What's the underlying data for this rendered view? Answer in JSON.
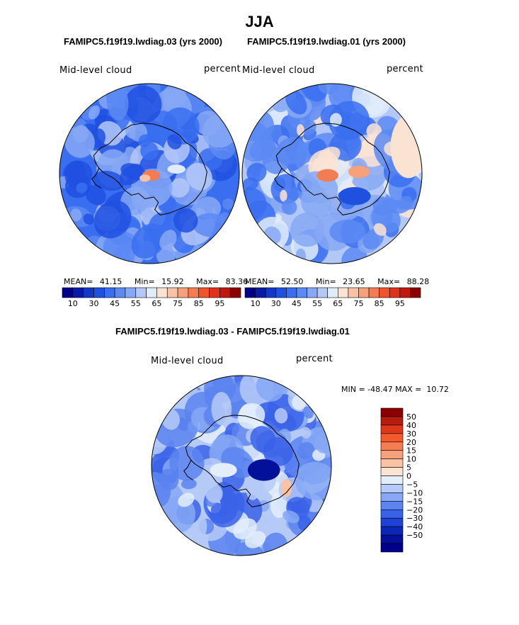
{
  "title": "JJA",
  "panels": [
    {
      "case_title": "FAMIPC5.f19f19.lwdiag.03 (yrs 2000)",
      "variable": "Mid-level cloud",
      "units": "percent",
      "stats": {
        "mean_label": "MEAN=",
        "mean": "41.15",
        "min_label": "Min=",
        "min": "15.92",
        "max_label": "Max=",
        "max": "83.36"
      }
    },
    {
      "case_title": "FAMIPC5.f19f19.lwdiag.01 (yrs 2000)",
      "variable": "Mid-level cloud",
      "units": "percent",
      "stats": {
        "mean_label": "MEAN=",
        "mean": "52.50",
        "min_label": "Min=",
        "min": "23.65",
        "max_label": "Max=",
        "max": "88.28"
      }
    }
  ],
  "diff_panel": {
    "title": "FAMIPC5.f19f19.lwdiag.03 - FAMIPC5.f19f19.lwdiag.01",
    "variable": "Mid-level cloud",
    "units": "percent",
    "minmax": "MIN = -48.47 MAX =  10.72"
  },
  "chart_data": [
    {
      "type": "heatmap",
      "projection": "south-polar-stereographic",
      "title": "FAMIPC5.f19f19.lwdiag.03 (yrs 2000)",
      "field": "Mid-level cloud",
      "units": "percent",
      "mean": 41.15,
      "min": 15.92,
      "max": 83.36,
      "contour_levels": [
        10,
        15,
        20,
        25,
        30,
        35,
        40,
        45,
        50,
        55,
        60,
        65,
        70,
        75,
        80,
        85,
        90,
        95
      ],
      "colorbar_labels": [
        "10",
        "30",
        "45",
        "55",
        "65",
        "75",
        "85",
        "95"
      ]
    },
    {
      "type": "heatmap",
      "projection": "south-polar-stereographic",
      "title": "FAMIPC5.f19f19.lwdiag.01 (yrs 2000)",
      "field": "Mid-level cloud",
      "units": "percent",
      "mean": 52.5,
      "min": 23.65,
      "max": 88.28,
      "contour_levels": [
        10,
        15,
        20,
        25,
        30,
        35,
        40,
        45,
        50,
        55,
        60,
        65,
        70,
        75,
        80,
        85,
        90,
        95
      ],
      "colorbar_labels": [
        "10",
        "30",
        "45",
        "55",
        "65",
        "75",
        "85",
        "95"
      ]
    },
    {
      "type": "heatmap",
      "projection": "south-polar-stereographic",
      "title": "FAMIPC5.f19f19.lwdiag.03 - FAMIPC5.f19f19.lwdiag.01",
      "field": "Mid-level cloud",
      "units": "percent",
      "min": -48.47,
      "max": 10.72,
      "contour_levels": [
        -50,
        -40,
        -30,
        -20,
        -15,
        -10,
        -5,
        0,
        5,
        10,
        15,
        20,
        30,
        40,
        50
      ],
      "colorbar_labels": [
        "50",
        "40",
        "30",
        "20",
        "15",
        "10",
        "5",
        "0",
        "−5",
        "−10",
        "−15",
        "−20",
        "−30",
        "−40",
        "−50"
      ]
    }
  ],
  "colors": {
    "abs_palette": [
      "#00008b",
      "#0a1aa8",
      "#1438c6",
      "#2050e0",
      "#3a6ef0",
      "#5c8af3",
      "#86a8f5",
      "#b4c8f8",
      "#e0ecfa",
      "#fbe3d3",
      "#f8c2a4",
      "#f6a07c",
      "#f47c52",
      "#f0542c",
      "#e0321a",
      "#c01a10",
      "#8b0000"
    ],
    "diff_palette_top_to_bottom": [
      "#8b0000",
      "#b71c10",
      "#e0381a",
      "#f45a2c",
      "#f67c52",
      "#f8a07c",
      "#fbc3a4",
      "#fce4d4",
      "#e4eefb",
      "#b6caf8",
      "#86a8f5",
      "#5c84f0",
      "#3a62e8",
      "#1e42d8",
      "#0c26b8",
      "#02109a",
      "#00008b"
    ],
    "coast": "#000000"
  }
}
